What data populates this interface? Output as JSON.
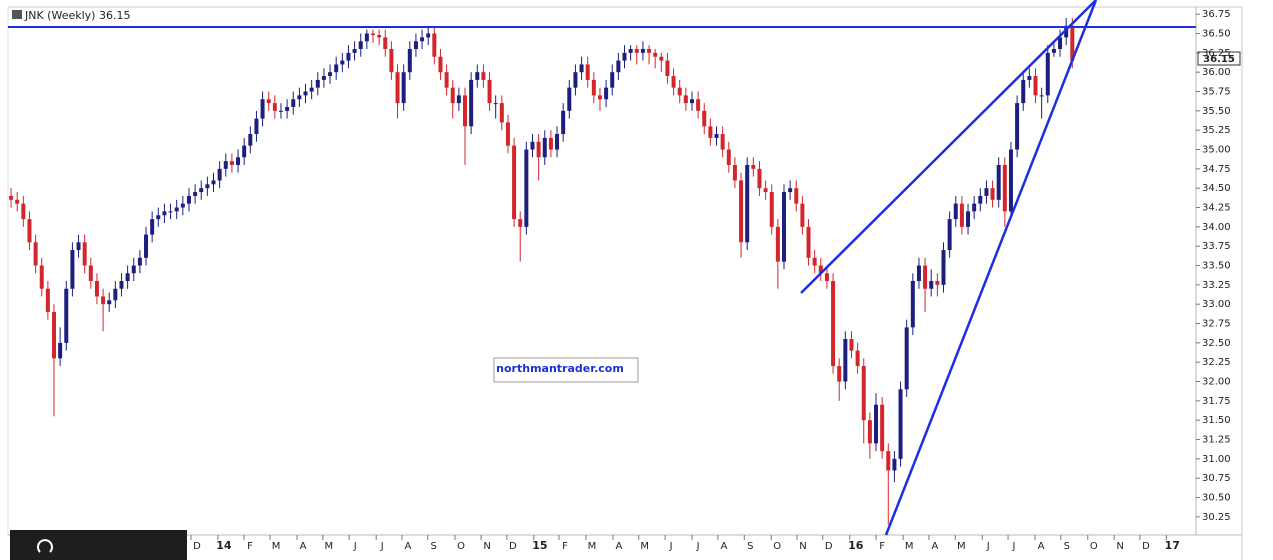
{
  "chart_data": {
    "type": "candlestick",
    "title": "JNK (Weekly) 36.15",
    "watermark": "northmantrader.com",
    "up_color": "#1c1f7e",
    "down_color": "#d3262c",
    "xlim": [
      -0.5,
      193
    ],
    "ylim": [
      30.08,
      36.83
    ],
    "xticks": [
      {
        "value": 30.3,
        "label": "D"
      },
      {
        "value": 34.7,
        "label": "14"
      },
      {
        "value": 38.95,
        "label": "F"
      },
      {
        "value": 43.2,
        "label": "M"
      },
      {
        "value": 47.6,
        "label": "A"
      },
      {
        "value": 51.8,
        "label": "M"
      },
      {
        "value": 56.1,
        "label": "J"
      },
      {
        "value": 60.5,
        "label": "J"
      },
      {
        "value": 64.7,
        "label": "A"
      },
      {
        "value": 68.9,
        "label": "S"
      },
      {
        "value": 73.35,
        "label": "O"
      },
      {
        "value": 77.6,
        "label": "N"
      },
      {
        "value": 81.8,
        "label": "D"
      },
      {
        "value": 86.2,
        "label": "15"
      },
      {
        "value": 90.3,
        "label": "F"
      },
      {
        "value": 94.7,
        "label": "M"
      },
      {
        "value": 99.1,
        "label": "A"
      },
      {
        "value": 103.3,
        "label": "M"
      },
      {
        "value": 107.6,
        "label": "J"
      },
      {
        "value": 112.0,
        "label": "J"
      },
      {
        "value": 116.2,
        "label": "A"
      },
      {
        "value": 120.5,
        "label": "S"
      },
      {
        "value": 124.9,
        "label": "O"
      },
      {
        "value": 129.1,
        "label": "N"
      },
      {
        "value": 133.3,
        "label": "D"
      },
      {
        "value": 137.7,
        "label": "16"
      },
      {
        "value": 142.0,
        "label": "F"
      },
      {
        "value": 146.4,
        "label": "M"
      },
      {
        "value": 150.6,
        "label": "A"
      },
      {
        "value": 154.9,
        "label": "M"
      },
      {
        "value": 159.3,
        "label": "J"
      },
      {
        "value": 163.5,
        "label": "J"
      },
      {
        "value": 167.9,
        "label": "A"
      },
      {
        "value": 172.1,
        "label": "S"
      },
      {
        "value": 176.5,
        "label": "O"
      },
      {
        "value": 180.8,
        "label": "N"
      },
      {
        "value": 185.0,
        "label": "D"
      },
      {
        "value": 189.3,
        "label": "17"
      }
    ],
    "yticks": [
      30.25,
      {
        "value": 30.5,
        "label": "30.50"
      },
      30.75,
      {
        "value": 31,
        "label": "31.00"
      },
      31.25,
      {
        "value": 31.5,
        "label": "31.50"
      },
      31.75,
      {
        "value": 32,
        "label": "32.00"
      },
      32.25,
      {
        "value": 32.5,
        "label": "32.50"
      },
      32.75,
      {
        "value": 33,
        "label": "33.00"
      },
      33.25,
      {
        "value": 33.5,
        "label": "33.50"
      },
      33.75,
      {
        "value": 34,
        "label": "34.00"
      },
      34.25,
      {
        "value": 34.5,
        "label": "34.50"
      },
      34.75,
      {
        "value": 35,
        "label": "35.00"
      },
      35.25,
      {
        "value": 35.5,
        "label": "35.50"
      },
      35.75,
      {
        "value": 36,
        "label": "36.00"
      },
      36.25,
      {
        "value": 36.5,
        "label": "36.50"
      },
      36.75
    ],
    "candles": [
      [
        0,
        34.4,
        34.5,
        34.25,
        34.35
      ],
      [
        1,
        34.35,
        34.45,
        34.2,
        34.3
      ],
      [
        2,
        34.3,
        34.4,
        34.0,
        34.1
      ],
      [
        3,
        34.1,
        34.2,
        33.7,
        33.8
      ],
      [
        4,
        33.8,
        33.9,
        33.4,
        33.5
      ],
      [
        5,
        33.5,
        33.6,
        33.1,
        33.2
      ],
      [
        6,
        33.2,
        33.3,
        32.8,
        32.9
      ],
      [
        7,
        32.9,
        33.0,
        31.55,
        32.3
      ],
      [
        8,
        32.3,
        32.7,
        32.2,
        32.5
      ],
      [
        9,
        32.5,
        33.3,
        32.4,
        33.2
      ],
      [
        10,
        33.2,
        33.8,
        33.1,
        33.7
      ],
      [
        11,
        33.7,
        33.9,
        33.6,
        33.8
      ],
      [
        12,
        33.8,
        33.9,
        33.4,
        33.5
      ],
      [
        13,
        33.5,
        33.6,
        33.2,
        33.3
      ],
      [
        14,
        33.3,
        33.4,
        33.0,
        33.1
      ],
      [
        15,
        33.1,
        33.2,
        32.65,
        33.0
      ],
      [
        16,
        33.0,
        33.15,
        32.9,
        33.05
      ],
      [
        17,
        33.05,
        33.3,
        32.95,
        33.2
      ],
      [
        18,
        33.2,
        33.4,
        33.1,
        33.3
      ],
      [
        19,
        33.3,
        33.5,
        33.2,
        33.4
      ],
      [
        20,
        33.4,
        33.6,
        33.3,
        33.5
      ],
      [
        21,
        33.5,
        33.7,
        33.4,
        33.6
      ],
      [
        22,
        33.6,
        34.0,
        33.5,
        33.9
      ],
      [
        23,
        33.9,
        34.2,
        33.8,
        34.1
      ],
      [
        24,
        34.1,
        34.25,
        34.0,
        34.15
      ],
      [
        25,
        34.15,
        34.3,
        34.05,
        34.2
      ],
      [
        26,
        34.2,
        34.3,
        34.1,
        34.2
      ],
      [
        27,
        34.2,
        34.35,
        34.1,
        34.25
      ],
      [
        28,
        34.25,
        34.4,
        34.15,
        34.3
      ],
      [
        29,
        34.3,
        34.5,
        34.2,
        34.4
      ],
      [
        30,
        34.4,
        34.55,
        34.3,
        34.45
      ],
      [
        31,
        34.45,
        34.6,
        34.35,
        34.5
      ],
      [
        32,
        34.5,
        34.65,
        34.4,
        34.55
      ],
      [
        33,
        34.55,
        34.7,
        34.45,
        34.6
      ],
      [
        34,
        34.6,
        34.85,
        34.5,
        34.75
      ],
      [
        35,
        34.75,
        34.95,
        34.65,
        34.85
      ],
      [
        36,
        34.85,
        34.95,
        34.7,
        34.8
      ],
      [
        37,
        34.8,
        35.0,
        34.7,
        34.9
      ],
      [
        38,
        34.9,
        35.15,
        34.8,
        35.05
      ],
      [
        39,
        35.05,
        35.3,
        34.95,
        35.2
      ],
      [
        40,
        35.2,
        35.5,
        35.1,
        35.4
      ],
      [
        41,
        35.4,
        35.75,
        35.3,
        35.65
      ],
      [
        42,
        35.65,
        35.75,
        35.5,
        35.6
      ],
      [
        43,
        35.6,
        35.7,
        35.4,
        35.5
      ],
      [
        44,
        35.5,
        35.6,
        35.4,
        35.5
      ],
      [
        45,
        35.5,
        35.65,
        35.4,
        35.55
      ],
      [
        46,
        35.55,
        35.75,
        35.45,
        35.65
      ],
      [
        47,
        35.65,
        35.8,
        35.55,
        35.7
      ],
      [
        48,
        35.7,
        35.85,
        35.6,
        35.75
      ],
      [
        49,
        35.75,
        35.9,
        35.65,
        35.8
      ],
      [
        50,
        35.8,
        36.0,
        35.7,
        35.9
      ],
      [
        51,
        35.9,
        36.05,
        35.8,
        35.95
      ],
      [
        52,
        35.95,
        36.1,
        35.85,
        36.0
      ],
      [
        53,
        36.0,
        36.2,
        35.9,
        36.1
      ],
      [
        54,
        36.1,
        36.25,
        36.0,
        36.15
      ],
      [
        55,
        36.15,
        36.35,
        36.05,
        36.25
      ],
      [
        56,
        36.25,
        36.4,
        36.15,
        36.3
      ],
      [
        57,
        36.3,
        36.5,
        36.2,
        36.4
      ],
      [
        58,
        36.4,
        36.55,
        36.3,
        36.5
      ],
      [
        59,
        36.5,
        36.55,
        36.38,
        36.48
      ],
      [
        60,
        36.48,
        36.55,
        36.35,
        36.45
      ],
      [
        61,
        36.45,
        36.55,
        36.2,
        36.3
      ],
      [
        62,
        36.3,
        36.4,
        35.9,
        36.0
      ],
      [
        63,
        36.0,
        36.1,
        35.4,
        35.6
      ],
      [
        64,
        35.6,
        36.1,
        35.5,
        36.0
      ],
      [
        65,
        36.0,
        36.4,
        35.9,
        36.3
      ],
      [
        66,
        36.3,
        36.5,
        36.2,
        36.4
      ],
      [
        67,
        36.4,
        36.55,
        36.3,
        36.45
      ],
      [
        68,
        36.45,
        36.6,
        36.35,
        36.5
      ],
      [
        69,
        36.5,
        36.6,
        36.1,
        36.2
      ],
      [
        70,
        36.2,
        36.3,
        35.9,
        36.0
      ],
      [
        71,
        36.0,
        36.1,
        35.7,
        35.8
      ],
      [
        72,
        35.8,
        35.9,
        35.4,
        35.6
      ],
      [
        73,
        35.6,
        35.8,
        35.5,
        35.7
      ],
      [
        74,
        35.7,
        35.8,
        34.8,
        35.3
      ],
      [
        75,
        35.3,
        36.0,
        35.2,
        35.9
      ],
      [
        76,
        35.9,
        36.1,
        35.8,
        36.0
      ],
      [
        77,
        36.0,
        36.1,
        35.8,
        35.9
      ],
      [
        78,
        35.9,
        36.0,
        35.5,
        35.6
      ],
      [
        79,
        35.6,
        35.7,
        35.4,
        35.6
      ],
      [
        80,
        35.6,
        35.7,
        35.25,
        35.35
      ],
      [
        81,
        35.35,
        35.45,
        34.95,
        35.05
      ],
      [
        82,
        35.05,
        35.15,
        34.0,
        34.1
      ],
      [
        83,
        34.1,
        34.2,
        33.55,
        34.0
      ],
      [
        84,
        34.0,
        35.1,
        33.9,
        35.0
      ],
      [
        85,
        35.0,
        35.2,
        34.9,
        35.1
      ],
      [
        86,
        35.1,
        35.2,
        34.6,
        34.9
      ],
      [
        87,
        34.9,
        35.25,
        34.8,
        35.15
      ],
      [
        88,
        35.15,
        35.25,
        34.9,
        35.0
      ],
      [
        89,
        35.0,
        35.3,
        34.9,
        35.2
      ],
      [
        90,
        35.2,
        35.6,
        35.1,
        35.5
      ],
      [
        91,
        35.5,
        35.9,
        35.4,
        35.8
      ],
      [
        92,
        35.8,
        36.1,
        35.7,
        36.0
      ],
      [
        93,
        36.0,
        36.2,
        35.9,
        36.1
      ],
      [
        94,
        36.1,
        36.2,
        35.8,
        35.9
      ],
      [
        95,
        35.9,
        36.0,
        35.6,
        35.7
      ],
      [
        96,
        35.7,
        35.8,
        35.5,
        35.65
      ],
      [
        97,
        35.65,
        35.9,
        35.55,
        35.8
      ],
      [
        98,
        35.8,
        36.1,
        35.7,
        36.0
      ],
      [
        99,
        36.0,
        36.25,
        35.9,
        36.15
      ],
      [
        100,
        36.15,
        36.35,
        36.05,
        36.25
      ],
      [
        101,
        36.25,
        36.35,
        36.15,
        36.3
      ],
      [
        102,
        36.3,
        36.35,
        36.1,
        36.25
      ],
      [
        103,
        36.25,
        36.4,
        36.15,
        36.3
      ],
      [
        104,
        36.3,
        36.35,
        36.1,
        36.25
      ],
      [
        105,
        36.25,
        36.3,
        36.05,
        36.2
      ],
      [
        106,
        36.2,
        36.25,
        36.0,
        36.15
      ],
      [
        107,
        36.15,
        36.25,
        35.85,
        35.95
      ],
      [
        108,
        35.95,
        36.05,
        35.7,
        35.8
      ],
      [
        109,
        35.8,
        35.9,
        35.6,
        35.7
      ],
      [
        110,
        35.7,
        35.8,
        35.5,
        35.6
      ],
      [
        111,
        35.6,
        35.75,
        35.5,
        35.65
      ],
      [
        112,
        35.65,
        35.75,
        35.4,
        35.5
      ],
      [
        113,
        35.5,
        35.6,
        35.2,
        35.3
      ],
      [
        114,
        35.3,
        35.4,
        35.05,
        35.15
      ],
      [
        115,
        35.15,
        35.3,
        35.05,
        35.2
      ],
      [
        116,
        35.2,
        35.3,
        34.9,
        35.0
      ],
      [
        117,
        35.0,
        35.1,
        34.7,
        34.8
      ],
      [
        118,
        34.8,
        34.9,
        34.5,
        34.6
      ],
      [
        119,
        34.6,
        34.7,
        33.6,
        33.8
      ],
      [
        120,
        33.8,
        34.9,
        33.7,
        34.8
      ],
      [
        121,
        34.8,
        34.9,
        34.65,
        34.75
      ],
      [
        122,
        34.75,
        34.85,
        34.4,
        34.5
      ],
      [
        123,
        34.5,
        34.6,
        34.35,
        34.45
      ],
      [
        124,
        34.45,
        34.55,
        33.9,
        34.0
      ],
      [
        125,
        34.0,
        34.1,
        33.2,
        33.55
      ],
      [
        126,
        33.55,
        34.55,
        33.45,
        34.45
      ],
      [
        127,
        34.45,
        34.6,
        34.35,
        34.5
      ],
      [
        128,
        34.5,
        34.6,
        34.2,
        34.3
      ],
      [
        129,
        34.3,
        34.4,
        33.9,
        34.0
      ],
      [
        130,
        34.0,
        34.1,
        33.5,
        33.6
      ],
      [
        131,
        33.6,
        33.7,
        33.4,
        33.5
      ],
      [
        132,
        33.5,
        33.6,
        33.3,
        33.4
      ],
      [
        133,
        33.4,
        33.5,
        33.2,
        33.3
      ],
      [
        134,
        33.3,
        33.4,
        32.1,
        32.2
      ],
      [
        135,
        32.2,
        32.3,
        31.75,
        32.0
      ],
      [
        136,
        32.0,
        32.65,
        31.9,
        32.55
      ],
      [
        137,
        32.55,
        32.65,
        32.3,
        32.4
      ],
      [
        138,
        32.4,
        32.5,
        32.1,
        32.2
      ],
      [
        139,
        32.2,
        32.3,
        31.2,
        31.5
      ],
      [
        140,
        31.5,
        31.6,
        31.0,
        31.2
      ],
      [
        141,
        31.2,
        31.85,
        31.1,
        31.7
      ],
      [
        142,
        31.7,
        31.8,
        31.0,
        31.1
      ],
      [
        143,
        31.1,
        31.2,
        30.15,
        30.85
      ],
      [
        144,
        30.85,
        31.1,
        30.7,
        31.0
      ],
      [
        145,
        31.0,
        32.0,
        30.9,
        31.9
      ],
      [
        146,
        31.9,
        32.8,
        31.8,
        32.7
      ],
      [
        147,
        32.7,
        33.4,
        32.6,
        33.3
      ],
      [
        148,
        33.3,
        33.6,
        33.2,
        33.5
      ],
      [
        149,
        33.5,
        33.6,
        32.9,
        33.2
      ],
      [
        150,
        33.2,
        33.45,
        33.1,
        33.3
      ],
      [
        151,
        33.3,
        33.4,
        33.1,
        33.25
      ],
      [
        152,
        33.25,
        33.8,
        33.15,
        33.7
      ],
      [
        153,
        33.7,
        34.2,
        33.6,
        34.1
      ],
      [
        154,
        34.1,
        34.4,
        34.0,
        34.3
      ],
      [
        155,
        34.3,
        34.4,
        33.9,
        34.0
      ],
      [
        156,
        34.0,
        34.3,
        33.9,
        34.2
      ],
      [
        157,
        34.2,
        34.4,
        34.1,
        34.3
      ],
      [
        158,
        34.3,
        34.5,
        34.2,
        34.4
      ],
      [
        159,
        34.4,
        34.6,
        34.3,
        34.5
      ],
      [
        160,
        34.5,
        34.6,
        34.25,
        34.35
      ],
      [
        161,
        34.35,
        34.9,
        34.25,
        34.8
      ],
      [
        162,
        34.8,
        34.9,
        34.0,
        34.2
      ],
      [
        163,
        34.2,
        35.1,
        34.1,
        35.0
      ],
      [
        164,
        35.0,
        35.7,
        34.9,
        35.6
      ],
      [
        165,
        35.6,
        36.0,
        35.5,
        35.9
      ],
      [
        166,
        35.9,
        36.05,
        35.8,
        35.95
      ],
      [
        167,
        35.95,
        36.05,
        35.6,
        35.7
      ],
      [
        168,
        35.7,
        35.8,
        35.4,
        35.7
      ],
      [
        169,
        35.7,
        36.35,
        35.6,
        36.25
      ],
      [
        170,
        36.25,
        36.4,
        36.2,
        36.3
      ],
      [
        171,
        36.3,
        36.55,
        36.2,
        36.45
      ],
      [
        172,
        36.45,
        36.7,
        36.35,
        36.6
      ],
      [
        173,
        36.6,
        36.7,
        36.05,
        36.15
      ]
    ]
  }
}
